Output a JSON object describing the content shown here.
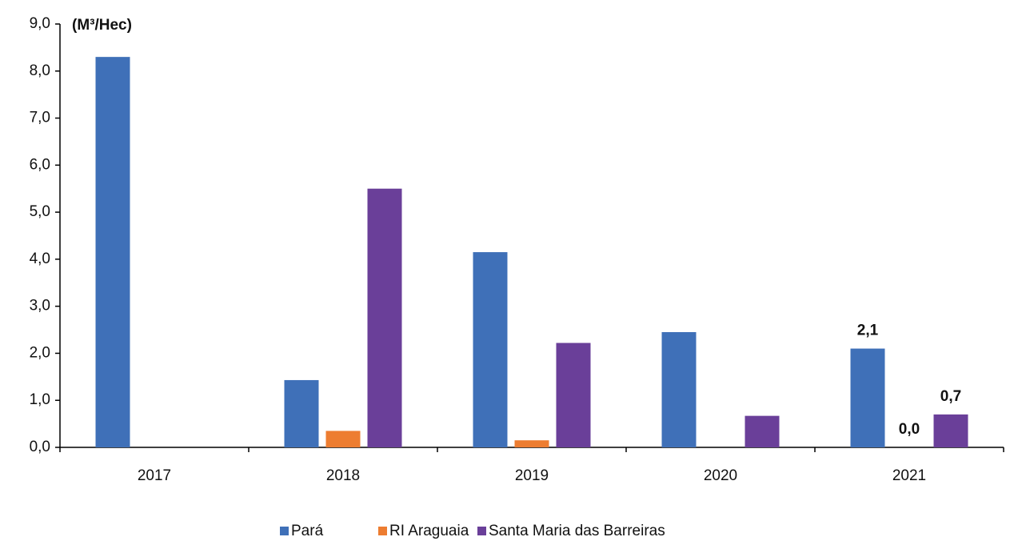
{
  "chart_data": {
    "type": "bar",
    "annotation": "(M³/Hec)",
    "categories": [
      "2017",
      "2018",
      "2019",
      "2020",
      "2021"
    ],
    "series": [
      {
        "name": "Pará",
        "color": "#3f70b8",
        "values": [
          8.3,
          1.43,
          4.15,
          2.45,
          2.1
        ],
        "value_labels": [
          null,
          null,
          null,
          null,
          "2,1"
        ]
      },
      {
        "name": "RI Araguaia",
        "color": "#ed7d31",
        "values": [
          null,
          0.35,
          0.15,
          null,
          0.0
        ],
        "value_labels": [
          null,
          null,
          null,
          null,
          "0,0"
        ]
      },
      {
        "name": "Santa Maria das Barreiras",
        "color": "#6a3f99",
        "values": [
          null,
          5.5,
          2.22,
          0.67,
          0.7
        ],
        "value_labels": [
          null,
          null,
          null,
          null,
          "0,7"
        ]
      }
    ],
    "ylim": [
      0,
      9
    ],
    "yticks": [
      {
        "value": 0,
        "label": "0,0"
      },
      {
        "value": 1,
        "label": "1,0"
      },
      {
        "value": 2,
        "label": "2,0"
      },
      {
        "value": 3,
        "label": "3,0"
      },
      {
        "value": 4,
        "label": "4,0"
      },
      {
        "value": 5,
        "label": "5,0"
      },
      {
        "value": 6,
        "label": "6,0"
      },
      {
        "value": 7,
        "label": "7,0"
      },
      {
        "value": 8,
        "label": "8,0"
      },
      {
        "value": 9,
        "label": "9,0"
      }
    ],
    "legend": "bottom"
  }
}
